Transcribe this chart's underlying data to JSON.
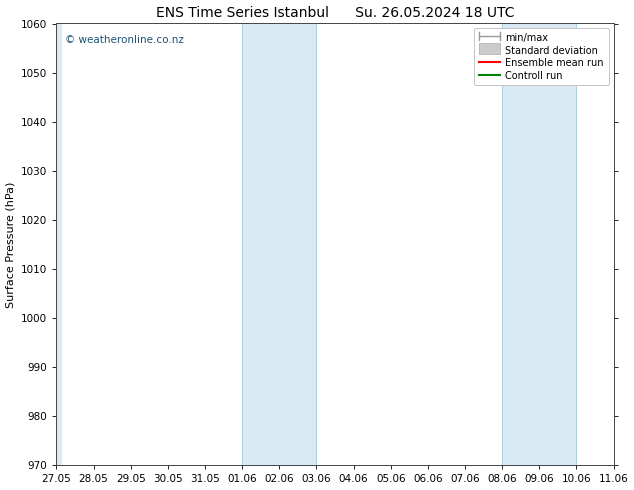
{
  "title": "ENS Time Series Istanbul      Su. 26.05.2024 18 UTC",
  "ylabel": "Surface Pressure (hPa)",
  "ylim": [
    970,
    1060
  ],
  "yticks": [
    970,
    980,
    990,
    1000,
    1010,
    1020,
    1030,
    1040,
    1050,
    1060
  ],
  "xtick_labels": [
    "27.05",
    "28.05",
    "29.05",
    "30.05",
    "31.05",
    "01.06",
    "02.06",
    "03.06",
    "04.06",
    "05.06",
    "06.06",
    "07.06",
    "08.06",
    "09.06",
    "10.06",
    "11.06"
  ],
  "xlim_start": 0,
  "xlim_end": 15,
  "shaded_bands": [
    {
      "x_start": 5.0,
      "x_end": 7.0
    },
    {
      "x_start": 12.0,
      "x_end": 14.0
    }
  ],
  "left_shaded": {
    "x_start": 0,
    "x_end": 0.15
  },
  "shaded_color": "#daeaf5",
  "shaded_edge_color": "#aacce0",
  "bg_color": "#ffffff",
  "watermark_text": "© weatheronline.co.nz",
  "watermark_color": "#1a5276",
  "legend_entries": [
    {
      "label": "min/max",
      "color": "#999999",
      "lw": 1.2
    },
    {
      "label": "Standard deviation",
      "color": "#cccccc",
      "lw": 6
    },
    {
      "label": "Ensemble mean run",
      "color": "#ff0000",
      "lw": 1.5
    },
    {
      "label": "Controll run",
      "color": "#008000",
      "lw": 1.5
    }
  ],
  "title_fontsize": 10,
  "axis_fontsize": 8,
  "tick_fontsize": 7.5,
  "legend_fontsize": 7,
  "watermark_fontsize": 7.5
}
